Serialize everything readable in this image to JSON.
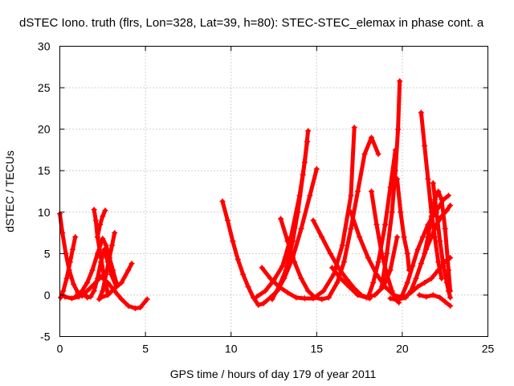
{
  "chart_data": {
    "type": "scatter",
    "title": "dSTEC Iono. truth (flrs, Lon=328, Lat=39, h=80): STEC-STEC_elemax in phase cont. a",
    "xlabel": "GPS time / hours of day 179 of year 2011",
    "ylabel": "dSTEC  / TECUs",
    "xlim": [
      0,
      25
    ],
    "ylim": [
      -5,
      30
    ],
    "xticks": [
      0,
      5,
      10,
      15,
      20,
      25
    ],
    "yticks": [
      -5,
      0,
      5,
      10,
      15,
      20,
      25,
      30
    ],
    "xtick_labels": [
      "0",
      "5",
      "10",
      "15",
      "20",
      "25"
    ],
    "ytick_labels": [
      "-5",
      "0",
      "5",
      "10",
      "15",
      "20",
      "25",
      "30"
    ],
    "grid": true,
    "marker": "plus",
    "color": "#ff0000",
    "series": [
      {
        "x": [
          0.0,
          0.15,
          0.35,
          0.55,
          0.8,
          1.05,
          1.3,
          1.5
        ],
        "y": [
          9.8,
          7.5,
          5.0,
          3.0,
          1.3,
          0.3,
          -0.1,
          0.0
        ]
      },
      {
        "x": [
          0.05,
          0.2,
          0.4,
          0.6,
          0.75,
          0.9
        ],
        "y": [
          -0.3,
          0.5,
          2.0,
          4.0,
          5.5,
          7.0
        ]
      },
      {
        "x": [
          0.3,
          0.7,
          1.1,
          1.6,
          2.0,
          2.4,
          2.8,
          3.2,
          3.6,
          4.0,
          4.4,
          4.7,
          5.1
        ],
        "y": [
          -0.2,
          -0.4,
          -0.2,
          0.5,
          1.3,
          2.2,
          1.5,
          0.5,
          -0.5,
          -1.3,
          -1.6,
          -1.5,
          -0.5
        ]
      },
      {
        "x": [
          0.9,
          1.3,
          1.6,
          1.9,
          2.2,
          2.5,
          2.7,
          2.9,
          3.1,
          3.3
        ],
        "y": [
          -0.2,
          0.5,
          1.5,
          3.0,
          5.0,
          6.8,
          6.0,
          4.5,
          3.0,
          1.5
        ]
      },
      {
        "x": [
          1.6,
          1.8,
          2.0,
          2.2,
          2.4,
          2.6,
          2.8,
          3.0,
          3.3
        ],
        "y": [
          -0.3,
          -0.2,
          0.5,
          2.0,
          4.0,
          5.5,
          4.0,
          2.5,
          1.0
        ]
      },
      {
        "x": [
          2.0,
          2.1,
          2.2,
          2.4,
          2.6,
          2.8
        ],
        "y": [
          10.3,
          9.0,
          7.0,
          4.5,
          2.0,
          0.3
        ]
      },
      {
        "x": [
          2.2,
          2.35,
          2.5,
          2.65
        ],
        "y": [
          7.0,
          8.5,
          9.5,
          10.2
        ]
      },
      {
        "x": [
          2.3,
          2.5,
          2.7,
          2.9,
          3.05,
          3.2
        ],
        "y": [
          -0.5,
          0.5,
          2.5,
          4.5,
          6.0,
          7.5
        ]
      },
      {
        "x": [
          2.4,
          2.8,
          3.2,
          3.6,
          4.0,
          4.2
        ],
        "y": [
          -0.3,
          0.0,
          0.8,
          1.5,
          3.0,
          3.8
        ]
      },
      {
        "x": [
          9.5,
          9.8,
          10.1,
          10.4,
          10.7,
          11.0,
          11.3,
          11.6,
          11.9,
          12.3,
          12.7,
          13.1,
          13.6,
          14.1,
          14.6,
          15.0
        ],
        "y": [
          11.3,
          9.0,
          6.5,
          4.3,
          2.5,
          1.0,
          -0.3,
          -1.2,
          -1.0,
          -0.3,
          0.5,
          2.0,
          4.5,
          8.0,
          12.0,
          15.2
        ]
      },
      {
        "x": [
          11.5,
          12.0,
          12.5,
          13.0,
          13.5,
          14.0,
          14.3,
          14.5
        ],
        "y": [
          -0.2,
          0.5,
          1.8,
          3.5,
          7.0,
          12.0,
          16.0,
          19.8
        ]
      },
      {
        "x": [
          12.4,
          12.8,
          13.2,
          13.6,
          13.9,
          14.2,
          14.45
        ],
        "y": [
          -0.5,
          1.0,
          3.0,
          6.5,
          10.0,
          14.5,
          18.5
        ]
      },
      {
        "x": [
          11.8,
          12.3,
          12.8,
          13.3,
          13.8,
          14.3,
          14.8,
          15.4,
          16.0,
          16.5,
          17.0,
          17.2
        ],
        "y": [
          3.3,
          2.0,
          1.0,
          0.3,
          -0.3,
          -0.4,
          -0.4,
          0.5,
          2.5,
          6.0,
          12.0,
          20.2
        ]
      },
      {
        "x": [
          12.9,
          13.3,
          13.7,
          14.1,
          14.5,
          14.9,
          15.3,
          15.7
        ],
        "y": [
          9.2,
          6.5,
          4.0,
          2.0,
          0.5,
          -0.3,
          -0.5,
          -0.3
        ]
      },
      {
        "x": [
          14.8,
          15.3,
          15.8,
          16.3,
          16.8,
          17.2,
          17.6,
          18.1
        ],
        "y": [
          9.0,
          7.0,
          5.0,
          3.2,
          1.8,
          0.8,
          0.0,
          -0.4
        ]
      },
      {
        "x": [
          15.7,
          16.2,
          16.6,
          17.0,
          17.4,
          17.8,
          18.2,
          18.6
        ],
        "y": [
          -0.3,
          1.5,
          4.0,
          8.0,
          12.5,
          17.0,
          19.0,
          17.0
        ]
      },
      {
        "x": [
          15.9,
          16.4,
          16.9,
          17.4,
          17.9,
          18.4,
          18.9,
          19.3,
          19.7
        ],
        "y": [
          3.3,
          2.0,
          1.0,
          0.0,
          -0.3,
          0.0,
          1.0,
          3.0,
          7.0
        ]
      },
      {
        "x": [
          17.0,
          17.5,
          18.0,
          18.5,
          19.0,
          19.5,
          20.0
        ],
        "y": [
          10.0,
          7.0,
          4.5,
          2.5,
          1.0,
          0.0,
          -0.3
        ]
      },
      {
        "x": [
          18.0,
          18.3,
          18.6,
          19.0,
          19.3,
          19.6
        ],
        "y": [
          -0.3,
          1.5,
          4.0,
          8.5,
          13.0,
          17.5
        ]
      },
      {
        "x": [
          18.2,
          18.5,
          18.8,
          19.1,
          19.4,
          19.6,
          19.8
        ],
        "y": [
          12.5,
          8.5,
          5.0,
          2.5,
          0.5,
          -0.5,
          -0.9
        ]
      },
      {
        "x": [
          18.8,
          19.1,
          19.4,
          19.6,
          19.75,
          19.85
        ],
        "y": [
          1.0,
          5.0,
          10.0,
          15.0,
          20.0,
          25.8
        ]
      },
      {
        "x": [
          19.3,
          19.7,
          20.1,
          20.5,
          20.9,
          21.3,
          21.7,
          22.1,
          22.5,
          22.8
        ],
        "y": [
          -0.4,
          -0.6,
          -0.3,
          0.3,
          1.0,
          1.5,
          2.0,
          3.0,
          4.0,
          4.5
        ]
      },
      {
        "x": [
          19.7,
          19.9,
          20.1,
          20.3,
          20.4
        ],
        "y": [
          14.0,
          10.0,
          7.0,
          5.0,
          3.0
        ]
      },
      {
        "x": [
          20.0,
          20.3,
          20.6,
          20.9,
          21.2,
          21.5,
          21.8,
          22.1,
          22.4,
          22.7
        ],
        "y": [
          0.0,
          1.5,
          3.5,
          5.5,
          7.0,
          8.5,
          9.5,
          10.5,
          11.5,
          12.0
        ]
      },
      {
        "x": [
          20.2,
          20.5,
          20.8,
          21.1,
          21.4,
          21.7,
          22.0,
          22.3,
          22.6,
          22.8
        ],
        "y": [
          -0.3,
          0.5,
          2.0,
          3.8,
          5.5,
          7.0,
          8.5,
          9.5,
          10.2,
          10.8
        ]
      },
      {
        "x": [
          21.1,
          21.3,
          21.5,
          21.7,
          21.9,
          22.1,
          22.3
        ],
        "y": [
          22.0,
          18.0,
          14.0,
          10.0,
          7.0,
          4.0,
          2.0
        ]
      },
      {
        "x": [
          21.3,
          21.5,
          21.7,
          21.9,
          22.1,
          22.3,
          22.5,
          22.7,
          22.8
        ],
        "y": [
          5.0,
          7.0,
          9.5,
          11.5,
          12.5,
          11.5,
          8.0,
          3.0,
          0.5
        ]
      },
      {
        "x": [
          21.0,
          21.4,
          21.8,
          22.2,
          22.5,
          22.8
        ],
        "y": [
          0.0,
          -0.2,
          0.0,
          -0.3,
          -0.8,
          -1.3
        ]
      },
      {
        "x": [
          21.8,
          22.0,
          22.2,
          22.4,
          22.6,
          22.7,
          22.8
        ],
        "y": [
          13.5,
          10.0,
          6.5,
          3.5,
          1.5,
          0.5,
          -0.3
        ]
      }
    ]
  }
}
